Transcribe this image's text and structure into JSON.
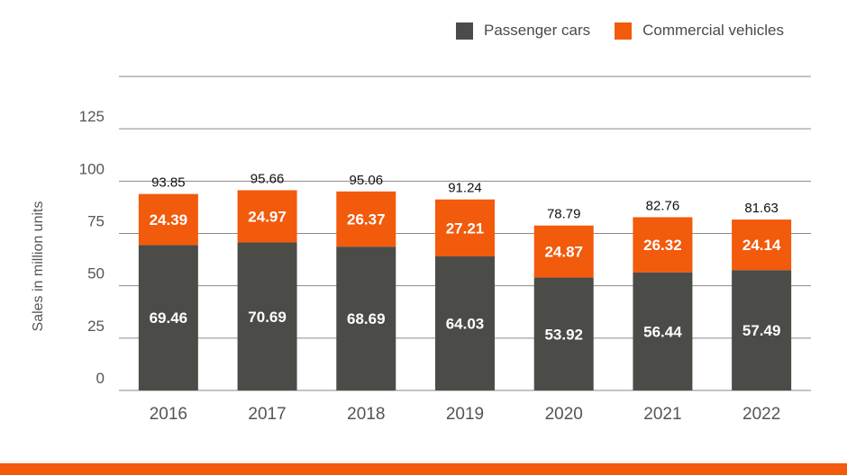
{
  "legend": {
    "passenger_label": "Passenger cars",
    "commercial_label": "Commercial vehicles"
  },
  "colors": {
    "passenger": "#4b4b48",
    "commercial": "#f25a0c",
    "grid": "#8a8a8a",
    "axis_text": "#555555",
    "footer_bar": "#f25a0c"
  },
  "chart_data": {
    "type": "bar",
    "stacked": true,
    "categories": [
      "2016",
      "2017",
      "2018",
      "2019",
      "2020",
      "2021",
      "2022"
    ],
    "series": [
      {
        "name": "Passenger cars",
        "values": [
          69.46,
          70.69,
          68.69,
          64.03,
          53.92,
          56.44,
          57.49
        ]
      },
      {
        "name": "Commercial vehicles",
        "values": [
          24.39,
          24.97,
          26.37,
          27.21,
          24.87,
          26.32,
          24.14
        ]
      }
    ],
    "totals": [
      93.85,
      95.66,
      95.06,
      91.24,
      78.79,
      82.76,
      81.63
    ],
    "ylabel": "Sales in million units",
    "xlabel": "",
    "yticks": [
      0,
      25,
      50,
      75,
      100,
      125
    ],
    "ylim": [
      0,
      150
    ],
    "grid": true,
    "legend_position": "top-right"
  }
}
